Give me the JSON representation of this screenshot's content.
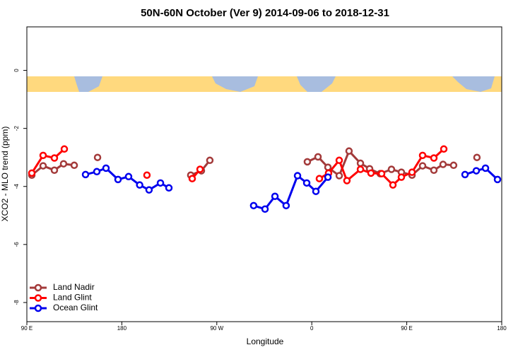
{
  "chart_data": {
    "type": "line",
    "title": "50N-60N October (Ver 9)   2014-09-06 to 2018-12-31",
    "x_label": "Longitude",
    "y_label": "XCO2 - MLO trend (ppm)",
    "xlim": [
      90,
      540
    ],
    "ylim": [
      -8.66,
      1.5
    ],
    "xticks": [
      {
        "value": 90,
        "label": "90 E"
      },
      {
        "value": 180,
        "label": "180"
      },
      {
        "value": 270,
        "label": "90 W"
      },
      {
        "value": 360,
        "label": "0"
      },
      {
        "value": 450,
        "label": "90 E"
      },
      {
        "value": 540,
        "label": "180"
      }
    ],
    "yticks": [
      0,
      -2,
      -4,
      -6,
      -8
    ],
    "legend": "bottom-left",
    "series": [
      {
        "name": "Land Nadir",
        "color": "#a33a3a",
        "x": [
          94.7,
          105.4,
          116.1,
          124.8,
          134.9,
          null,
          157,
          null,
          245.3,
          255.4,
          263.4,
          null,
          355.8,
          365.9,
          375.3,
          386,
          395.3,
          406.1,
          414.8,
          424.8,
          435.5,
          444.9,
          455,
          465,
          475.7,
          484.4,
          494.4,
          null,
          516.5
        ],
        "values": [
          -3.61,
          -3.29,
          -3.44,
          -3.22,
          -3.27,
          null,
          -3.0,
          null,
          -3.61,
          -3.46,
          -3.1,
          null,
          -3.15,
          -2.98,
          -3.34,
          -3.63,
          -2.78,
          -3.2,
          -3.39,
          -3.56,
          -3.41,
          -3.51,
          -3.61,
          -3.29,
          -3.44,
          -3.24,
          -3.27,
          null,
          -3.0
        ]
      },
      {
        "name": "Land Glint",
        "color": "#ff0000",
        "x": [
          94.7,
          105.4,
          116.1,
          125.5,
          null,
          203.8,
          null,
          246.7,
          254.1,
          null,
          367.2,
          375.9,
          386,
          393.3,
          406.1,
          416.1,
          426.2,
          436.9,
          444.9,
          455,
          465,
          475.7,
          485.1
        ],
        "values": [
          -3.54,
          -2.93,
          -3.02,
          -2.71,
          null,
          -3.61,
          null,
          -3.73,
          -3.41,
          null,
          -3.73,
          -3.54,
          -3.1,
          -3.8,
          -3.41,
          -3.54,
          -3.56,
          -3.95,
          -3.68,
          -3.51,
          -2.93,
          -3.02,
          -2.71
        ]
      },
      {
        "name": "Ocean Glint",
        "color": "#0000ee",
        "x": [
          145.6,
          156.3,
          165,
          176.4,
          186.4,
          196.9,
          205.8,
          216.6,
          224.6,
          null,
          304.9,
          315.7,
          325.1,
          335.7,
          346.5,
          355.2,
          363.9,
          375.3,
          null,
          505.2,
          515.9,
          524.6,
          536
        ],
        "values": [
          -3.59,
          -3.49,
          -3.37,
          -3.76,
          -3.66,
          -3.95,
          -4.12,
          -3.88,
          -4.05,
          null,
          -4.66,
          -4.78,
          -4.34,
          -4.66,
          -3.63,
          -3.88,
          -4.17,
          -3.68,
          null,
          -3.59,
          -3.46,
          -3.37,
          -3.76
        ]
      }
    ]
  }
}
